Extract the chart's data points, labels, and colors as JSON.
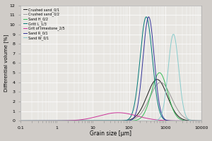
{
  "title": "",
  "xlabel": "Grain size [μm]",
  "ylabel": "Differential volume [%]",
  "xlim": [
    0.1,
    10000
  ],
  "ylim": [
    0,
    12
  ],
  "yticks": [
    0,
    1,
    2,
    3,
    4,
    5,
    6,
    7,
    8,
    9,
    10,
    11,
    12
  ],
  "background_color": "#d0ccc8",
  "plot_bg_color": "#e8e6e2",
  "grid_color": "#ffffff",
  "series": [
    {
      "label": "Crushed sand_0/1",
      "color": "#1a1a1a",
      "peak": 600,
      "sigma": 0.28,
      "amplitude": 4.3
    },
    {
      "label": "Crushed sand_0/2",
      "color": "#999999",
      "peak": 750,
      "sigma": 0.3,
      "amplitude": 4.0
    },
    {
      "label": "Sand H_0/2",
      "color": "#33bb55",
      "peak": 700,
      "sigma": 0.22,
      "amplitude": 5.0
    },
    {
      "label": "Gritt L_1/3",
      "color": "#007777",
      "peak": 300,
      "sigma": 0.17,
      "amplitude": 10.8
    },
    {
      "label": "Grit of limestone_2/5",
      "color": "#cc3399",
      "peak": 50,
      "sigma": 0.52,
      "amplitude": 0.85
    },
    {
      "label": "Sand R_0/1",
      "color": "#333399",
      "peak": 350,
      "sigma": 0.155,
      "amplitude": 10.8
    },
    {
      "label": "Sand W_0/1",
      "color": "#88cccc",
      "peak": 1700,
      "sigma": 0.145,
      "amplitude": 9.0
    }
  ]
}
